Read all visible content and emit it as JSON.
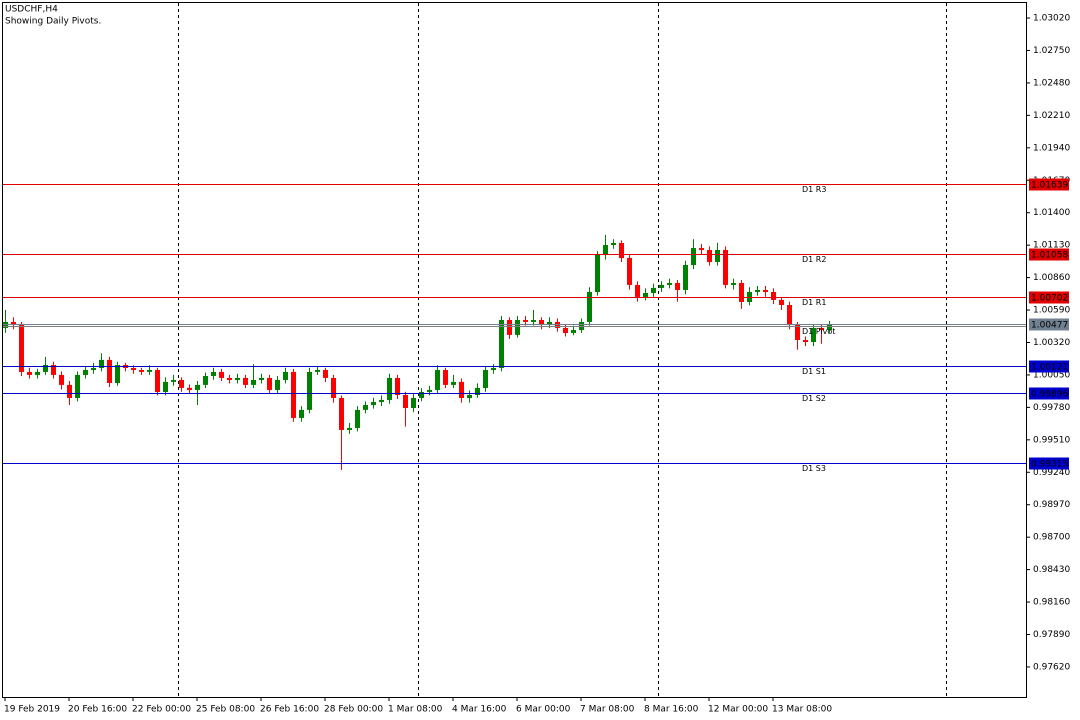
{
  "chart_data": {
    "type": "candlestick",
    "title": "USDCHF,H4",
    "subtitle": "Showing Daily Pivots.",
    "categories": [
      "19 Feb 2019",
      null,
      null,
      null,
      null,
      null,
      null,
      null,
      "20 Feb 16:00",
      null,
      null,
      null,
      null,
      null,
      null,
      null,
      "22 Feb 00:00",
      null,
      null,
      null,
      null,
      null,
      null,
      null,
      "25 Feb 08:00",
      null,
      null,
      null,
      null,
      null,
      null,
      null,
      "26 Feb 16:00",
      null,
      null,
      null,
      null,
      null,
      null,
      null,
      "28 Feb 00:00",
      null,
      null,
      null,
      null,
      null,
      null,
      null,
      "1 Mar 08:00",
      null,
      null,
      null,
      null,
      null,
      null,
      null,
      "4 Mar 16:00",
      null,
      null,
      null,
      null,
      null,
      null,
      null,
      "6 Mar 00:00",
      null,
      null,
      null,
      null,
      null,
      null,
      null,
      "7 Mar 08:00",
      null,
      null,
      null,
      null,
      null,
      null,
      null,
      "8 Mar 16:00",
      null,
      null,
      null,
      null,
      null,
      null,
      null,
      "12 Mar 00:00",
      null,
      null,
      null,
      null,
      null,
      null,
      null,
      "13 Mar 08:00",
      null,
      null,
      null,
      null,
      null,
      null,
      null
    ],
    "open": [
      1.00441,
      1.00491,
      1.00466,
      1.00075,
      1.0005,
      1.00075,
      1.00133,
      1.0005,
      0.99967,
      0.99858,
      1.0005,
      1.00091,
      1.00108,
      1.00175,
      0.99983,
      1.00133,
      1.00108,
      1.00091,
      1.00075,
      1.00091,
      0.99908,
      0.99992,
      1.00008,
      0.99942,
      0.99925,
      0.99967,
      1.00041,
      1.00075,
      1.00025,
      1.00008,
      1.00025,
      0.99967,
      1.00008,
      1.00025,
      0.99925,
      1.00008,
      1.00075,
      0.99692,
      0.99759,
      1.00075,
      1.00091,
      1.00025,
      0.99858,
      0.99592,
      0.99609,
      0.99759,
      0.998,
      0.99825,
      0.99842,
      1.00025,
      0.99883,
      0.99775,
      0.99858,
      0.99908,
      0.99925,
      1.00091,
      0.99967,
      0.99992,
      0.99858,
      0.99883,
      0.99942,
      1.00091,
      1.00108,
      1.00507,
      1.00383,
      1.00507,
      1.00491,
      1.00507,
      1.00466,
      1.00491,
      1.00441,
      1.00399,
      1.00424,
      1.00491,
      1.0074,
      1.01048,
      1.01131,
      1.01148,
      1.01023,
      1.00799,
      1.00699,
      1.00732,
      1.00774,
      1.00799,
      1.00815,
      1.00757,
      1.00965,
      1.01106,
      1.0109,
      1.0099,
      1.0109,
      1.00799,
      1.00815,
      1.00657,
      1.0074,
      1.00757,
      1.0074,
      1.00674,
      1.00632,
      1.00466,
      1.00341,
      1.00324,
      1.00441,
      1.00424
    ],
    "high": [
      1.00591,
      1.0053,
      1.0049,
      1.0011,
      1.001,
      1.002,
      1.0016,
      1.0008,
      1.0,
      1.0008,
      1.0012,
      1.0015,
      1.0023,
      1.002,
      1.0016,
      1.0015,
      1.0013,
      1.0011,
      1.0013,
      1.0011,
      1.0003,
      1.0005,
      1.0003,
      0.9997,
      1.0,
      1.0007,
      1.0011,
      1.001,
      1.0005,
      1.0006,
      1.0005,
      1.0014,
      1.0006,
      1.0005,
      1.0004,
      1.0011,
      1.001,
      0.9979,
      1.0011,
      1.0012,
      1.0011,
      1.0005,
      0.9988,
      0.9965,
      0.9979,
      0.9983,
      0.9986,
      0.9988,
      1.0006,
      1.0005,
      0.9991,
      0.9989,
      0.9994,
      0.9996,
      1.0013,
      1.0011,
      1.0005,
      1.0002,
      0.9992,
      0.9998,
      1.0012,
      1.0014,
      1.0054,
      1.0053,
      1.0054,
      1.0054,
      1.0059,
      1.0053,
      1.0053,
      1.0052,
      1.0047,
      1.0046,
      1.0052,
      1.0078,
      1.0108,
      1.01215,
      1.0118,
      1.0117,
      1.0105,
      1.0083,
      1.0077,
      1.0081,
      1.0083,
      1.0085,
      1.0084,
      1.01,
      1.0118,
      1.0114,
      1.0112,
      1.0115,
      1.0112,
      1.0085,
      1.0084,
      1.0078,
      1.0079,
      1.0079,
      1.0077,
      1.007,
      1.0066,
      1.0049,
      1.0037,
      1.0047,
      1.0047,
      1.005
    ],
    "low": [
      1.004,
      1.0043,
      1.0004,
      1.0002,
      1.0002,
      1.0005,
      1.0002,
      0.9993,
      0.998,
      0.9983,
      1.0002,
      1.0006,
      1.0008,
      0.9995,
      0.9996,
      1.0008,
      1.0006,
      1.0005,
      1.0005,
      0.9988,
      0.9988,
      0.9996,
      0.9991,
      0.9989,
      0.998,
      0.9994,
      1.0001,
      1.0,
      0.9998,
      0.9998,
      0.9994,
      0.9994,
      0.9998,
      0.9989,
      0.999,
      0.9998,
      0.9966,
      0.9966,
      0.9973,
      1.0005,
      0.9999,
      0.9982,
      0.99259,
      0.9956,
      0.9958,
      0.9973,
      0.9977,
      0.9979,
      0.9981,
      0.9985,
      0.9962,
      0.9974,
      0.9983,
      0.9988,
      0.999,
      0.9994,
      0.9994,
      0.9982,
      0.9982,
      0.9986,
      0.9991,
      1.0006,
      1.0008,
      1.0035,
      1.0036,
      1.0046,
      1.0046,
      1.0043,
      1.0044,
      1.0041,
      1.0037,
      1.0038,
      1.004,
      1.0046,
      1.0071,
      1.0101,
      1.011,
      1.0099,
      1.0076,
      1.0066,
      1.0067,
      1.007,
      1.0074,
      1.0077,
      1.0066,
      1.0072,
      1.0093,
      1.0105,
      1.0096,
      1.0096,
      1.0077,
      1.0076,
      1.006,
      1.0063,
      1.0071,
      1.007,
      1.0064,
      1.0059,
      1.0043,
      1.0026,
      1.0029,
      1.0029,
      1.0031,
      1.004
    ],
    "close": [
      1.00491,
      1.00466,
      1.00075,
      1.0005,
      1.00075,
      1.00133,
      1.0005,
      0.99967,
      0.99858,
      1.0005,
      1.00091,
      1.00108,
      1.00175,
      0.99983,
      1.00133,
      1.00108,
      1.00091,
      1.00075,
      1.00091,
      0.99908,
      0.99992,
      1.00008,
      0.99942,
      0.99925,
      0.99967,
      1.00041,
      1.00075,
      1.00025,
      1.00008,
      1.00025,
      0.99967,
      1.00008,
      1.00025,
      0.99925,
      1.00008,
      1.00075,
      0.99692,
      0.99759,
      1.00075,
      1.00091,
      1.00025,
      0.99858,
      0.99592,
      0.99609,
      0.99759,
      0.998,
      0.99825,
      0.99842,
      1.00025,
      0.99883,
      0.99775,
      0.99858,
      0.99908,
      0.99925,
      1.00091,
      0.99967,
      0.99992,
      0.99858,
      0.99883,
      0.99942,
      1.00091,
      1.00108,
      1.00507,
      1.00383,
      1.00507,
      1.00491,
      1.00507,
      1.00466,
      1.00491,
      1.00441,
      1.00399,
      1.00424,
      1.00491,
      1.0074,
      1.01048,
      1.01131,
      1.01148,
      1.01023,
      1.00799,
      1.00699,
      1.00732,
      1.00774,
      1.00799,
      1.00815,
      1.00757,
      1.00965,
      1.01106,
      1.0109,
      1.0099,
      1.0109,
      1.00799,
      1.00815,
      1.00657,
      1.0074,
      1.00757,
      1.0074,
      1.00674,
      1.00632,
      1.00466,
      1.00341,
      1.00324,
      1.00441,
      1.00424,
      1.00466
    ],
    "up_color": "#008000",
    "down_color": "#ff0000",
    "ylim": [
      0.9737,
      1.03145
    ],
    "yticks": [
      {
        "value": 1.0302,
        "label": "1.03020"
      },
      {
        "value": 1.0275,
        "label": "1.02750"
      },
      {
        "value": 1.0248,
        "label": "1.02480"
      },
      {
        "value": 1.0221,
        "label": "1.02210"
      },
      {
        "value": 1.0194,
        "label": "1.01940"
      },
      {
        "value": 1.0167,
        "label": "1.01670"
      },
      {
        "value": 1.014,
        "label": "1.01400"
      },
      {
        "value": 1.0113,
        "label": "1.01130"
      },
      {
        "value": 1.0086,
        "label": "1.00860"
      },
      {
        "value": 1.0059,
        "label": "1.00590"
      },
      {
        "value": 1.0032,
        "label": "1.00320"
      },
      {
        "value": 1.0005,
        "label": "1.00050"
      },
      {
        "value": 0.9978,
        "label": "0.99780"
      },
      {
        "value": 0.9951,
        "label": "0.99510"
      },
      {
        "value": 0.9924,
        "label": "0.99240"
      },
      {
        "value": 0.9897,
        "label": "0.98970"
      },
      {
        "value": 0.987,
        "label": "0.98700"
      },
      {
        "value": 0.9843,
        "label": "0.98430"
      },
      {
        "value": 0.9816,
        "label": "0.98160"
      },
      {
        "value": 0.9789,
        "label": "0.97890"
      },
      {
        "value": 0.9762,
        "label": "0.97620"
      }
    ],
    "levels": [
      {
        "name": "D1 R3",
        "value": 1.01639,
        "color": "#e00000"
      },
      {
        "name": "D1 R2",
        "value": 1.01058,
        "color": "#e00000"
      },
      {
        "name": "D1 R1",
        "value": 1.00702,
        "color": "#e00000"
      },
      {
        "name": "D1 Pivot",
        "value": 1.00458,
        "color": "#808080"
      },
      {
        "name": "D1 S1",
        "value": 1.00121,
        "color": "#0000cc"
      },
      {
        "name": "D1 S2",
        "value": 0.99896,
        "color": "#0000cc"
      },
      {
        "name": "D1 S3",
        "value": 0.99315,
        "color": "#0000cc"
      }
    ],
    "bid": {
      "value": 1.00477,
      "color": "#708090"
    }
  }
}
